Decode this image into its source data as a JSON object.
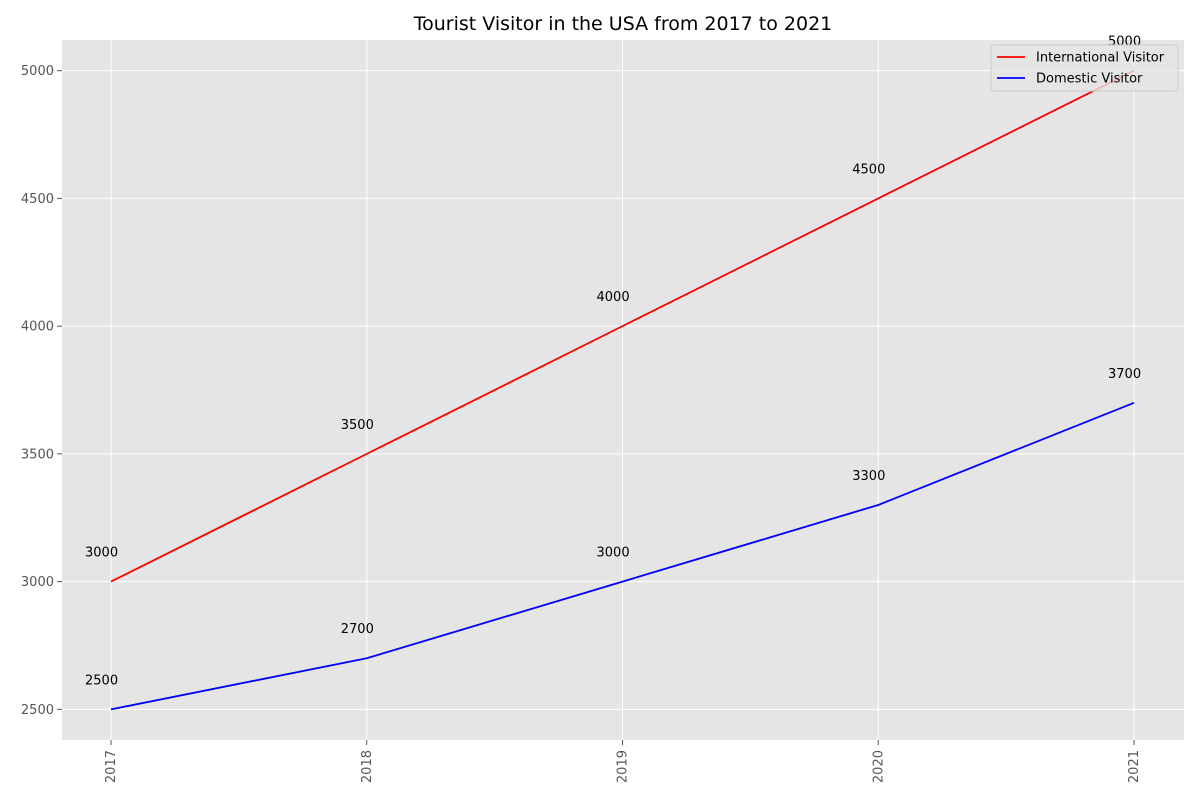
{
  "chart_data": {
    "type": "line",
    "title": "Tourist Visitor in the USA from 2017 to 2021",
    "xlabel": "",
    "ylabel": "",
    "categories": [
      "2017",
      "2018",
      "2019",
      "2020",
      "2021"
    ],
    "yticks": [
      "2500",
      "3000",
      "3500",
      "4000",
      "4500",
      "5000"
    ],
    "ylim": [
      2380,
      5120
    ],
    "grid": true,
    "legend_position": "top-right",
    "series": [
      {
        "name": "International Visitor",
        "color": "#ff0000",
        "values": [
          3000,
          3500,
          4000,
          4500,
          5000
        ],
        "labels": [
          "3000",
          "3500",
          "4000",
          "4500",
          "5000"
        ]
      },
      {
        "name": "Domestic Visitor",
        "color": "#0000ff",
        "values": [
          2500,
          2700,
          3000,
          3300,
          3700
        ],
        "labels": [
          "2500",
          "2700",
          "3000",
          "3300",
          "3700"
        ]
      }
    ]
  }
}
